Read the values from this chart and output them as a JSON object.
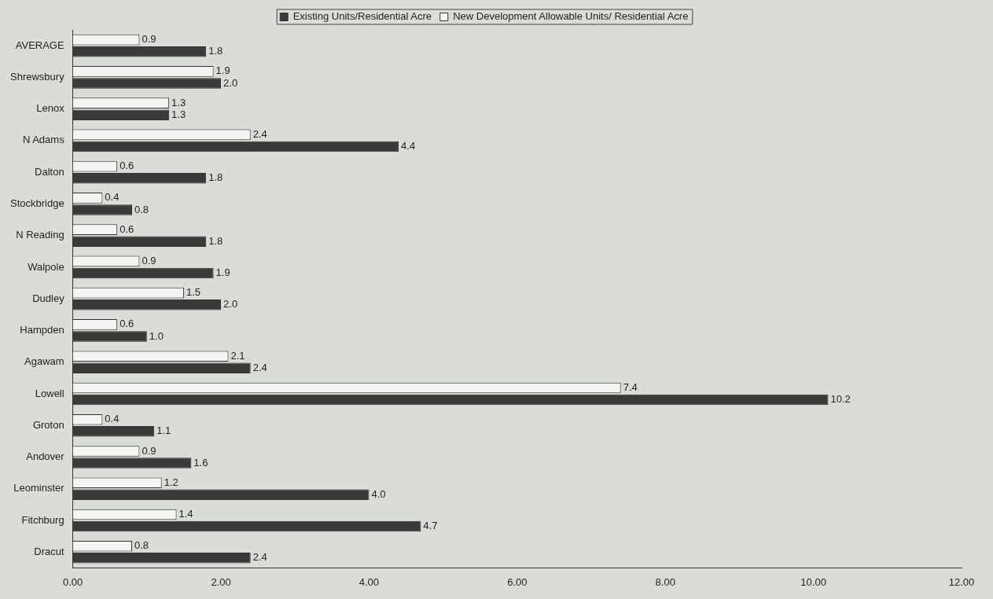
{
  "chart_data": {
    "type": "bar",
    "orientation": "horizontal",
    "categories": [
      "AVERAGE",
      "Shrewsbury",
      "Lenox",
      "N Adams",
      "Dalton",
      "Stockbridge",
      "N Reading",
      "Walpole",
      "Dudley",
      "Hampden",
      "Agawam",
      "Lowell",
      "Groton",
      "Andover",
      "Leominster",
      "Fitchburg",
      "Dracut"
    ],
    "series": [
      {
        "name": "New Development Allowable Units/ Residential Acre",
        "color": "#f4f4f2",
        "values": [
          0.9,
          1.9,
          1.3,
          2.4,
          0.6,
          0.4,
          0.6,
          0.9,
          1.5,
          0.6,
          2.1,
          7.4,
          0.4,
          0.9,
          1.2,
          1.4,
          0.8
        ],
        "value_labels": [
          "0.9",
          "1.9",
          "1.3",
          "2.4",
          "0.6",
          "0.4",
          "0.6",
          "0.9",
          "1.5",
          "0.6",
          "2.1",
          "7.4",
          "0.4",
          "0.9",
          "1.2",
          "1.4",
          "0.8"
        ]
      },
      {
        "name": "Existing Units/Residential Acre",
        "color": "#3a3a3a",
        "values": [
          1.8,
          2.0,
          1.3,
          4.4,
          1.8,
          0.8,
          1.8,
          1.9,
          2.0,
          1.0,
          2.4,
          10.2,
          1.1,
          1.6,
          4.0,
          4.7,
          2.4
        ],
        "value_labels": [
          "1.8",
          "2.0",
          "1.3",
          "4.4",
          "1.8",
          "0.8",
          "1.8",
          "1.9",
          "2.0",
          "1.0",
          "2.4",
          "10.2",
          "1.1",
          "1.6",
          "4.0",
          "4.7",
          "2.4"
        ]
      }
    ],
    "xlim": [
      0,
      12
    ],
    "xticks": [
      {
        "value": 0,
        "label": "0.00"
      },
      {
        "value": 2,
        "label": "2.00"
      },
      {
        "value": 4,
        "label": "4.00"
      },
      {
        "value": 6,
        "label": "6.00"
      },
      {
        "value": 8,
        "label": "8.00"
      },
      {
        "value": 10,
        "label": "10.00"
      },
      {
        "value": 12,
        "label": "12.00"
      }
    ],
    "legend": "top",
    "grid": false
  }
}
